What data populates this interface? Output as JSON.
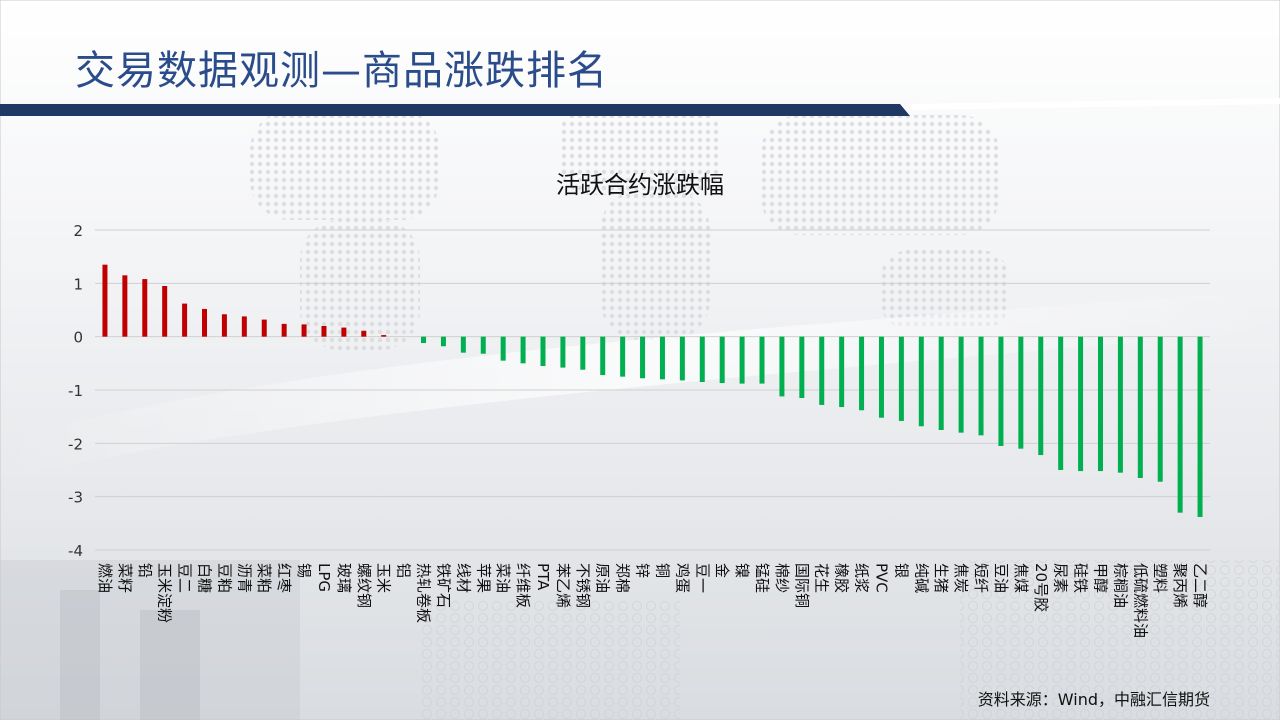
{
  "slide": {
    "title": "交易数据观测—商品涨跌排名",
    "source": "资料来源：Wind，中融汇信期货"
  },
  "colors": {
    "up": "#c00000",
    "down": "#00b050",
    "title": "#2b4c8a",
    "band": "#1f3864"
  },
  "chart_data": {
    "type": "bar",
    "title": "活跃合约涨跌幅",
    "xlabel": "",
    "ylabel": "",
    "ylim": [
      -4,
      2
    ],
    "yticks": [
      2,
      1,
      0,
      -1,
      -2,
      -3,
      -4
    ],
    "grid": true,
    "legend": "none",
    "categories": [
      "燃油",
      "菜籽",
      "铅",
      "玉米淀粉",
      "豆二",
      "白糖",
      "豆粕",
      "沥青",
      "菜粕",
      "红枣",
      "锡",
      "LPG",
      "玻璃",
      "螺纹钢",
      "玉米",
      "铝",
      "热轧卷板",
      "铁矿石",
      "线材",
      "苹果",
      "菜油",
      "纤维板",
      "PTA",
      "苯乙烯",
      "不锈钢",
      "原油",
      "郑棉",
      "锌",
      "铜",
      "鸡蛋",
      "豆一",
      "金",
      "镍",
      "锰硅",
      "棉纱",
      "国际铜",
      "花生",
      "橡胶",
      "纸浆",
      "PVC",
      "银",
      "纯碱",
      "生猪",
      "焦炭",
      "短纤",
      "豆油",
      "焦煤",
      "20号胶",
      "尿素",
      "硅铁",
      "甲醇",
      "棕榈油",
      "低硫燃料油",
      "塑料",
      "聚丙烯",
      "乙二醇"
    ],
    "values": [
      1.35,
      1.15,
      1.08,
      0.95,
      0.62,
      0.52,
      0.42,
      0.38,
      0.32,
      0.24,
      0.23,
      0.2,
      0.17,
      0.11,
      0.03,
      0.0,
      -0.12,
      -0.18,
      -0.3,
      -0.32,
      -0.45,
      -0.5,
      -0.55,
      -0.58,
      -0.62,
      -0.72,
      -0.75,
      -0.78,
      -0.8,
      -0.82,
      -0.85,
      -0.87,
      -0.88,
      -0.88,
      -1.12,
      -1.15,
      -1.28,
      -1.32,
      -1.38,
      -1.52,
      -1.58,
      -1.68,
      -1.75,
      -1.8,
      -1.85,
      -2.05,
      -2.1,
      -2.22,
      -2.5,
      -2.52,
      -2.52,
      -2.55,
      -2.65,
      -2.72,
      -3.3,
      -3.38
    ]
  }
}
